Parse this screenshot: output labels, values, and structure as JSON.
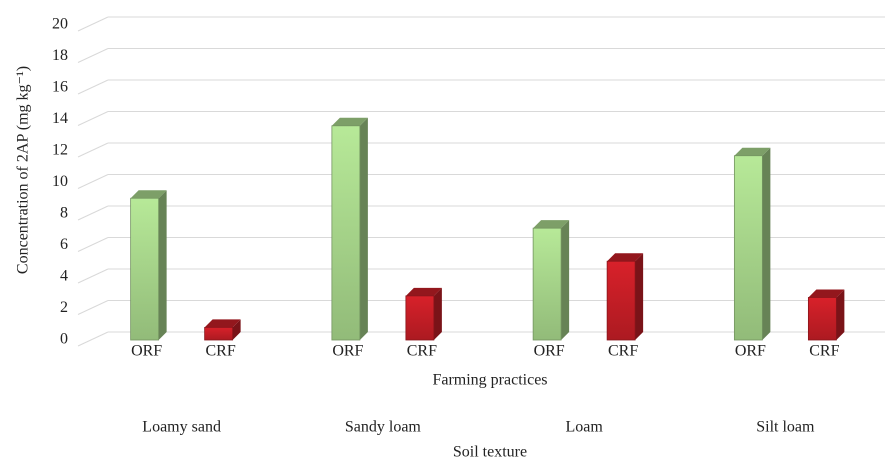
{
  "chart_data": {
    "type": "bar3d",
    "y_label": "Concentration of 2AP (mg kg⁻¹)",
    "x_label": "Farming practices",
    "group_label": "Soil texture",
    "categories": [
      "Loamy sand",
      "Sandy loam",
      "Loam",
      "Silt loam"
    ],
    "series": [
      {
        "name": "ORF",
        "color": "#a6d48a",
        "values": [
          9.0,
          13.6,
          7.1,
          11.7
        ]
      },
      {
        "name": "CRF",
        "color": "#c41e26",
        "values": [
          0.8,
          2.8,
          5.0,
          2.7
        ]
      }
    ],
    "ylim": [
      0,
      20
    ],
    "yticks": [
      0,
      2,
      4,
      6,
      8,
      10,
      12,
      14,
      16,
      18,
      20
    ],
    "grid": true
  }
}
